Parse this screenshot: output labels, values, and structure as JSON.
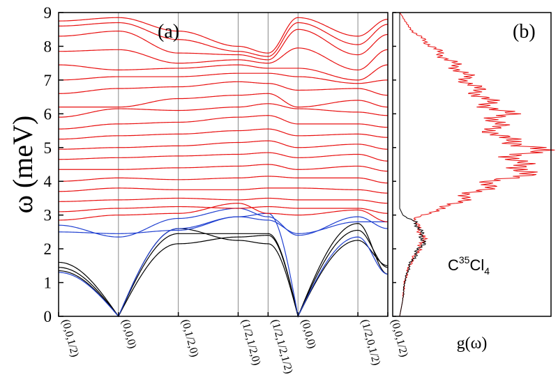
{
  "colors": {
    "acoustic": "#000000",
    "transverse": "#1f3fd0",
    "optical": "#e81010",
    "gridline": "#888888",
    "axis": "#000000"
  },
  "chart_data": [
    {
      "type": "line",
      "panel_label": "(a)",
      "ylabel": "ω (meV)",
      "ylim": [
        0,
        9
      ],
      "y_ticks": [
        "0",
        "1",
        "2",
        "3",
        "4",
        "5",
        "6",
        "7",
        "8",
        "9"
      ],
      "k_points": [
        "(0,0,1/2)",
        "(0,0,0)",
        "(0,1/2,0)",
        "(1/2,1/2,0)",
        "(1/2,1/2,1/2)",
        "(0,0,0)",
        "(1/2,0,1/2)",
        "(0,0,1/2)"
      ],
      "k_positions": [
        0,
        1,
        2,
        3,
        3.5,
        4,
        5,
        5.5
      ],
      "grid": "vertical at high-symmetry points",
      "series": [
        {
          "role": "acoustic",
          "values": [
            1.35,
            0,
            2.15,
            2.35,
            2.4,
            0,
            2.25,
            1.5
          ]
        },
        {
          "role": "acoustic",
          "values": [
            1.45,
            0,
            2.45,
            2.45,
            2.45,
            0,
            2.55,
            1.45
          ]
        },
        {
          "role": "acoustic",
          "values": [
            1.6,
            0,
            2.6,
            2.25,
            2.15,
            0,
            2.75,
            1.25
          ]
        },
        {
          "role": "transverse",
          "values": [
            2.7,
            2.35,
            2.9,
            3.2,
            2.95,
            2.4,
            2.95,
            2.6
          ]
        },
        {
          "role": "transverse",
          "values": [
            2.5,
            2.45,
            2.55,
            2.95,
            2.85,
            2.45,
            2.8,
            2.8
          ]
        },
        {
          "role": "transverse",
          "values": [
            1.3,
            0,
            2.6,
            2.95,
            3.05,
            0,
            2.35,
            1.25
          ]
        },
        {
          "role": "optical",
          "values": [
            8.75,
            8.85,
            8.45,
            8.0,
            7.8,
            8.85,
            8.3,
            8.8
          ]
        },
        {
          "role": "optical",
          "values": [
            8.6,
            8.7,
            8.2,
            7.85,
            7.7,
            8.7,
            8.05,
            8.65
          ]
        },
        {
          "role": "optical",
          "values": [
            8.3,
            8.45,
            7.8,
            7.75,
            7.6,
            8.5,
            7.75,
            8.35
          ]
        },
        {
          "role": "optical",
          "values": [
            7.85,
            7.9,
            7.5,
            7.6,
            7.5,
            7.95,
            7.3,
            7.9
          ]
        },
        {
          "role": "optical",
          "values": [
            7.45,
            7.3,
            7.35,
            7.45,
            7.35,
            7.35,
            7.0,
            7.45
          ]
        },
        {
          "role": "optical",
          "values": [
            7.0,
            7.1,
            7.1,
            7.2,
            7.2,
            7.1,
            6.9,
            7.0
          ]
        },
        {
          "role": "optical",
          "values": [
            6.6,
            6.75,
            6.8,
            6.95,
            6.9,
            6.7,
            6.75,
            6.55
          ]
        },
        {
          "role": "optical",
          "values": [
            6.2,
            6.2,
            6.45,
            6.55,
            6.6,
            6.2,
            6.4,
            6.2
          ]
        },
        {
          "role": "optical",
          "values": [
            5.9,
            6.15,
            6.1,
            6.2,
            6.3,
            6.15,
            6.05,
            5.95
          ]
        },
        {
          "role": "optical",
          "values": [
            5.55,
            5.7,
            5.75,
            5.9,
            5.95,
            5.7,
            5.7,
            5.6
          ]
        },
        {
          "role": "optical",
          "values": [
            5.25,
            5.35,
            5.4,
            5.5,
            5.55,
            5.35,
            5.4,
            5.3
          ]
        },
        {
          "role": "optical",
          "values": [
            4.95,
            5.0,
            5.05,
            5.15,
            5.2,
            5.0,
            5.1,
            4.95
          ]
        },
        {
          "role": "optical",
          "values": [
            4.65,
            4.7,
            4.75,
            4.8,
            4.85,
            4.7,
            4.8,
            4.6
          ]
        },
        {
          "role": "optical",
          "values": [
            4.35,
            4.35,
            4.4,
            4.45,
            4.5,
            4.35,
            4.45,
            4.3
          ]
        },
        {
          "role": "optical",
          "values": [
            4.0,
            4.1,
            4.05,
            4.1,
            4.15,
            4.1,
            4.1,
            3.95
          ]
        },
        {
          "role": "optical",
          "values": [
            3.7,
            3.8,
            3.75,
            3.75,
            3.8,
            3.8,
            3.75,
            3.65
          ]
        },
        {
          "role": "optical",
          "values": [
            3.4,
            3.45,
            3.5,
            3.45,
            3.5,
            3.45,
            3.45,
            3.35
          ]
        },
        {
          "role": "optical",
          "values": [
            3.1,
            3.2,
            3.25,
            3.2,
            3.25,
            3.2,
            3.2,
            3.05
          ]
        },
        {
          "role": "optical",
          "values": [
            2.85,
            3.0,
            3.05,
            3.35,
            3.05,
            3.0,
            3.15,
            2.8
          ]
        }
      ]
    },
    {
      "type": "line",
      "panel_label": "(b)",
      "xlabel": "g(ω)",
      "ylim": [
        0,
        9
      ],
      "annotation": {
        "base": "C",
        "superscript": "35",
        "middle": "Cl",
        "subscript": "4"
      },
      "series": [
        {
          "role": "total",
          "omega": [
            0,
            0.5,
            1.0,
            1.5,
            2.0,
            2.2,
            2.4,
            2.6,
            2.8,
            2.9,
            3.0,
            3.1,
            3.2,
            3.5,
            3.8,
            4.0,
            4.3,
            4.6,
            5.0,
            5.3,
            5.6,
            6.0,
            6.3,
            6.6,
            7.0,
            7.3,
            7.6,
            8.0,
            8.3,
            8.6,
            8.8,
            9.0
          ],
          "g": [
            0.0,
            0.02,
            0.03,
            0.06,
            0.12,
            0.15,
            0.14,
            0.12,
            0.1,
            0.1,
            0.14,
            0.2,
            0.28,
            0.4,
            0.52,
            0.6,
            0.82,
            0.7,
            0.85,
            0.62,
            0.58,
            0.65,
            0.55,
            0.5,
            0.42,
            0.38,
            0.3,
            0.2,
            0.12,
            0.05,
            0.03,
            0.0
          ]
        },
        {
          "role": "acoustic",
          "omega": [
            0,
            0.5,
            1.0,
            1.5,
            2.0,
            2.2,
            2.4,
            2.6,
            2.8,
            2.9,
            3.0,
            3.1,
            3.2,
            3.5,
            9.0
          ],
          "g": [
            0.0,
            0.02,
            0.03,
            0.06,
            0.12,
            0.15,
            0.14,
            0.12,
            0.1,
            0.05,
            0.02,
            0.01,
            0.0,
            0.0,
            0.0
          ]
        }
      ]
    }
  ]
}
